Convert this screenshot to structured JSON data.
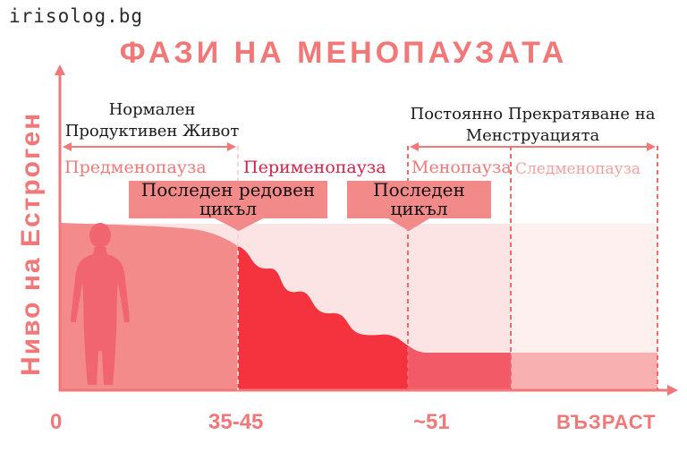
{
  "site": "irisolog.bg",
  "title": "ФАЗИ НА МЕНОПАУЗАТА",
  "ylabel": "Ниво на Естроген",
  "xlabel": "ВЪЗРАСТ",
  "ticks": [
    "0",
    "35-45",
    "~51"
  ],
  "notes": {
    "normal": [
      "Нормален",
      "Продуктивен Живот"
    ],
    "permanent": [
      "Постоянно Прекратяване на",
      "Менструацията"
    ]
  },
  "phases": [
    {
      "label": "Предменопауза",
      "color": "#f07878"
    },
    {
      "label": "Перименопауза",
      "color": "#d8204a"
    },
    {
      "label": "Менопауза",
      "color": "#f07878"
    },
    {
      "label": "Следменопауза",
      "color": "#f5a0a0"
    }
  ],
  "callouts": {
    "last_regular": [
      "Последен редовен",
      "цикъл"
    ],
    "last": [
      "Последен",
      "цикъл"
    ]
  },
  "colors": {
    "accent": "#f07878",
    "premenopause": "#f48b8b",
    "perimenopause": "#f5333f",
    "menopause": "#f25a68",
    "postmenopause": "#f8b0b0",
    "silhouette": "#f06570"
  }
}
